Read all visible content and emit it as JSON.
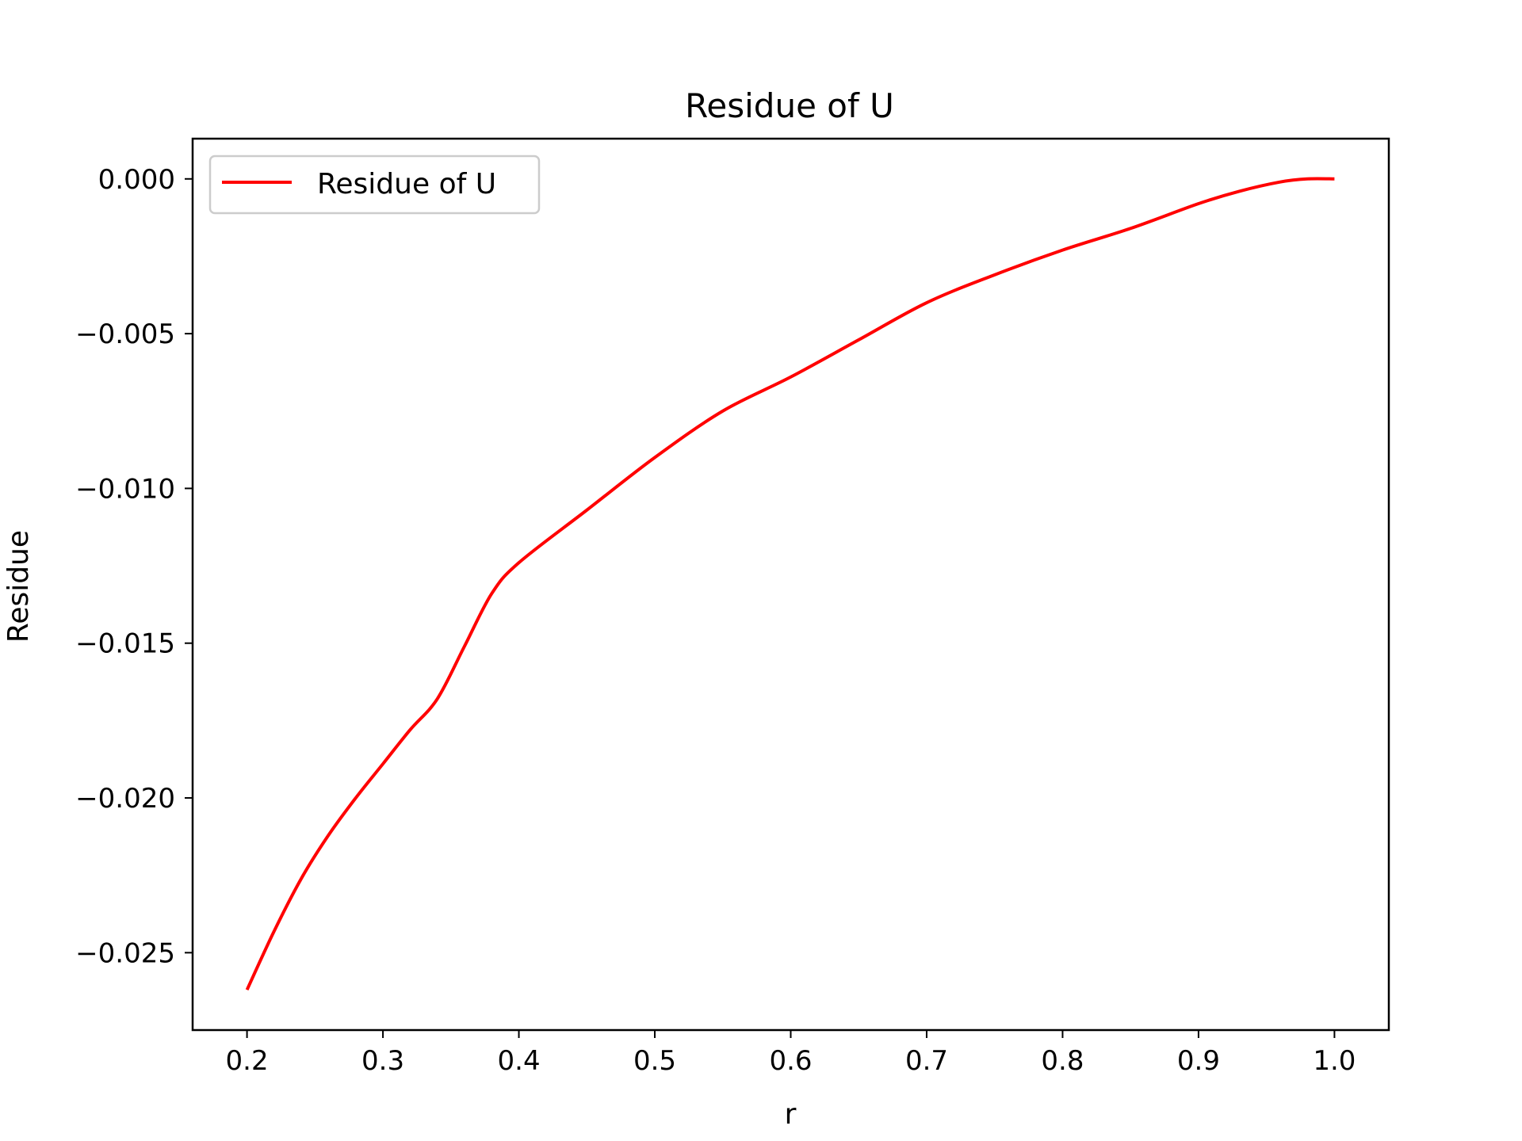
{
  "chart_data": {
    "type": "line",
    "title": "Residue of U",
    "xlabel": "r",
    "ylabel": "Residue",
    "xlim": [
      0.16,
      1.04
    ],
    "ylim": [
      -0.0275,
      0.0013
    ],
    "x_ticks": [
      0.2,
      0.3,
      0.4,
      0.5,
      0.6,
      0.7,
      0.8,
      0.9,
      1.0
    ],
    "x_tick_labels": [
      "0.2",
      "0.3",
      "0.4",
      "0.5",
      "0.6",
      "0.7",
      "0.8",
      "0.9",
      "1.0"
    ],
    "y_ticks": [
      0.0,
      -0.005,
      -0.01,
      -0.015,
      -0.02,
      -0.025
    ],
    "y_tick_labels": [
      "0.000",
      "−0.005",
      "−0.010",
      "−0.015",
      "−0.020",
      "−0.025"
    ],
    "grid": false,
    "legend_position": "top-left",
    "series": [
      {
        "name": "Residue of U",
        "color": "#ff0000",
        "x": [
          0.2,
          0.22,
          0.24,
          0.26,
          0.28,
          0.3,
          0.32,
          0.34,
          0.36,
          0.38,
          0.4,
          0.45,
          0.5,
          0.55,
          0.6,
          0.65,
          0.7,
          0.75,
          0.8,
          0.85,
          0.9,
          0.93,
          0.96,
          0.98,
          1.0
        ],
        "y": [
          -0.0262,
          -0.0243,
          -0.0226,
          -0.0212,
          -0.02,
          -0.0189,
          -0.0178,
          -0.0168,
          -0.0151,
          -0.0134,
          -0.0124,
          -0.0107,
          -0.009,
          -0.0075,
          -0.0064,
          -0.0052,
          -0.004,
          -0.0031,
          -0.0023,
          -0.0016,
          -0.0008,
          -0.0004,
          -0.0001,
          0.0,
          0.0
        ]
      }
    ]
  }
}
